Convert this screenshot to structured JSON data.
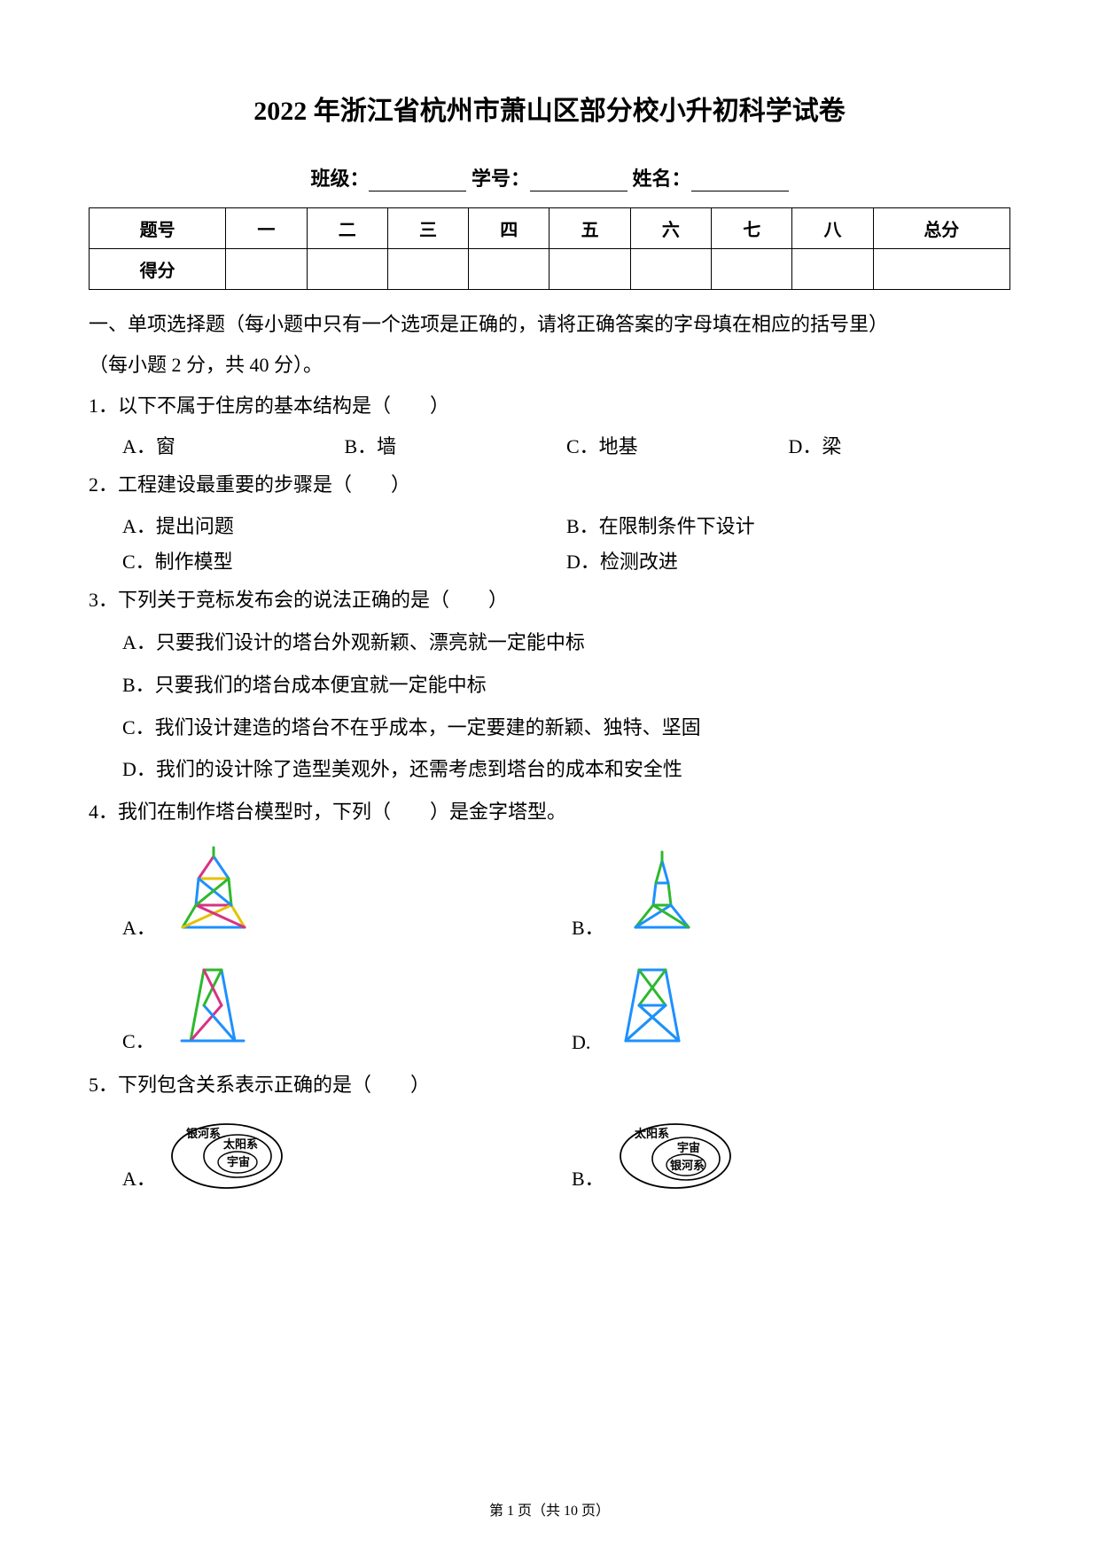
{
  "title": "2022 年浙江省杭州市萧山区部分校小升初科学试卷",
  "info": {
    "class_label": "班级：",
    "id_label": "学号：",
    "name_label": "姓名："
  },
  "scoreTable": {
    "row1": {
      "h": "题号",
      "cells": [
        "一",
        "二",
        "三",
        "四",
        "五",
        "六",
        "七",
        "八",
        "总分"
      ]
    },
    "row2": {
      "h": "得分"
    }
  },
  "sectionHead1": "一、单项选择题（每小题中只有一个选项是正确的，请将正确答案的字母填在相应的括号里）",
  "sectionHead2": "（每小题 2 分，共 40 分）。",
  "q1": {
    "stem": "1．以下不属于住房的基本结构是（　　）",
    "A": "A．窗",
    "B": "B．墙",
    "C": "C．地基",
    "D": "D．梁"
  },
  "q2": {
    "stem": "2．工程建设最重要的步骤是（　　）",
    "A": "A．提出问题",
    "B": "B．在限制条件下设计",
    "C": "C．制作模型",
    "D": "D．检测改进"
  },
  "q3": {
    "stem": "3．下列关于竞标发布会的说法正确的是（　　）",
    "A": "A．只要我们设计的塔台外观新颖、漂亮就一定能中标",
    "B": "B．只要我们的塔台成本便宜就一定能中标",
    "C": "C．我们设计建造的塔台不在乎成本，一定要建的新颖、独特、坚固",
    "D": "D．我们的设计除了造型美观外，还需考虑到塔台的成本和安全性"
  },
  "q4": {
    "stem": "4．我们在制作塔台模型时，下列（　　）是金字塔型。",
    "labels": {
      "A": "A．",
      "B": "B．",
      "C": "C．",
      "D": "D."
    },
    "towerA": {
      "lines": [
        [
          20,
          95,
          90,
          95
        ],
        [
          20,
          95,
          35,
          70
        ],
        [
          90,
          95,
          75,
          70
        ],
        [
          35,
          70,
          75,
          70
        ],
        [
          35,
          70,
          38,
          40
        ],
        [
          75,
          70,
          72,
          40
        ],
        [
          38,
          40,
          72,
          40
        ],
        [
          38,
          40,
          55,
          15
        ],
        [
          72,
          40,
          55,
          15
        ],
        [
          55,
          15,
          55,
          5
        ],
        [
          20,
          95,
          75,
          70
        ],
        [
          90,
          95,
          35,
          70
        ],
        [
          38,
          40,
          75,
          70
        ],
        [
          72,
          40,
          35,
          70
        ]
      ],
      "colors": [
        "#1e90ff",
        "#2eb82e",
        "#e5c100",
        "#d63384",
        "#1e90ff",
        "#2eb82e",
        "#e5c100",
        "#d63384",
        "#1e90ff",
        "#2eb82e",
        "#e5c100",
        "#d63384",
        "#1e90ff",
        "#2eb82e"
      ]
    },
    "towerB": {
      "lines": [
        [
          25,
          95,
          85,
          95
        ],
        [
          25,
          95,
          45,
          70
        ],
        [
          85,
          95,
          65,
          70
        ],
        [
          45,
          70,
          65,
          70
        ],
        [
          45,
          70,
          48,
          45
        ],
        [
          65,
          70,
          62,
          45
        ],
        [
          48,
          45,
          62,
          45
        ],
        [
          48,
          45,
          55,
          20
        ],
        [
          62,
          45,
          55,
          20
        ],
        [
          55,
          20,
          55,
          10
        ],
        [
          25,
          95,
          65,
          70
        ],
        [
          85,
          95,
          45,
          70
        ]
      ],
      "colors": [
        "#1e90ff",
        "#2eb82e",
        "#1e90ff",
        "#2eb82e",
        "#1e90ff",
        "#2eb82e",
        "#1e90ff",
        "#2eb82e",
        "#1e90ff",
        "#2eb82e",
        "#1e90ff",
        "#2eb82e"
      ]
    },
    "towerC": {
      "lines": [
        [
          20,
          95,
          90,
          95
        ],
        [
          30,
          95,
          45,
          15
        ],
        [
          80,
          95,
          65,
          15
        ],
        [
          45,
          15,
          65,
          15
        ],
        [
          30,
          95,
          65,
          55
        ],
        [
          80,
          95,
          45,
          55
        ],
        [
          45,
          55,
          65,
          15
        ],
        [
          65,
          55,
          45,
          15
        ],
        [
          30,
          95,
          80,
          95
        ]
      ],
      "colors": [
        "#1e90ff",
        "#2eb82e",
        "#1e90ff",
        "#2eb82e",
        "#d63384",
        "#1e90ff",
        "#2eb82e",
        "#d63384",
        "#1e90ff"
      ]
    },
    "towerD": {
      "lines": [
        [
          25,
          95,
          85,
          95
        ],
        [
          25,
          95,
          40,
          15
        ],
        [
          85,
          95,
          70,
          15
        ],
        [
          40,
          15,
          70,
          15
        ],
        [
          25,
          95,
          70,
          55
        ],
        [
          85,
          95,
          40,
          55
        ],
        [
          40,
          55,
          85,
          95
        ],
        [
          70,
          55,
          25,
          95
        ],
        [
          40,
          55,
          70,
          15
        ],
        [
          70,
          55,
          40,
          15
        ],
        [
          40,
          55,
          70,
          55
        ]
      ],
      "colors": [
        "#1e90ff",
        "#1e90ff",
        "#1e90ff",
        "#1e90ff",
        "#2eb82e",
        "#2eb82e",
        "#1e90ff",
        "#1e90ff",
        "#2eb82e",
        "#2eb82e",
        "#1e90ff"
      ]
    }
  },
  "q5": {
    "stem": "5．下列包含关系表示正确的是（　　）",
    "labels": {
      "A": "A．",
      "B": "B．"
    },
    "vennA": {
      "outer": "银河系",
      "mid": "太阳系",
      "inner": "宇宙"
    },
    "vennB": {
      "outer": "太阳系",
      "mid": "宇宙",
      "inner": "银河系"
    }
  },
  "footer": {
    "text": "第 1 页（共 10 页）"
  },
  "colors": {
    "text": "#000000",
    "background": "#ffffff",
    "stroke_dark": "#000000"
  }
}
